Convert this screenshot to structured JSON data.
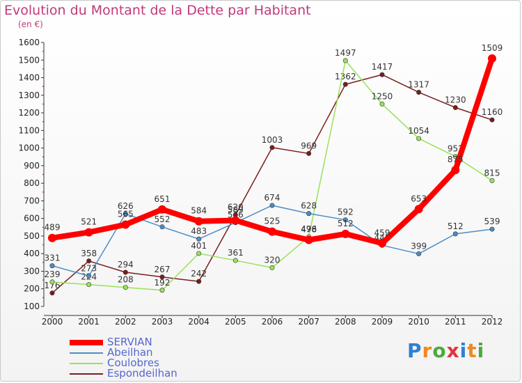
{
  "title": "Evolution du Montant de la Dette par Habitant",
  "subtitle": "(en €)",
  "logo_letters": [
    {
      "ch": "P",
      "color": "#2f7fd4"
    },
    {
      "ch": "r",
      "color": "#f08a1c"
    },
    {
      "ch": "o",
      "color": "#4aaa3a"
    },
    {
      "ch": "x",
      "color": "#e0353f"
    },
    {
      "ch": "i",
      "color": "#2f7fd4"
    },
    {
      "ch": "t",
      "color": "#f08a1c"
    },
    {
      "ch": "i",
      "color": "#4aaa3a"
    }
  ],
  "chart_data": {
    "type": "line",
    "x": [
      "2000",
      "2001",
      "2002",
      "2003",
      "2004",
      "2005",
      "2006",
      "2007",
      "2008",
      "2009",
      "2010",
      "2011",
      "2012"
    ],
    "ylim": [
      100,
      1600
    ],
    "yticks": [
      100,
      200,
      300,
      400,
      500,
      600,
      700,
      800,
      900,
      1000,
      1100,
      1200,
      1300,
      1400,
      1500,
      1600
    ],
    "grid": false,
    "legend_position": "bottom-left",
    "series": [
      {
        "name": "Espondeilhan",
        "color": "#7a1d1d",
        "values": [
          176,
          358,
          294,
          267,
          242,
          620,
          1003,
          969,
          1362,
          1417,
          1317,
          1230,
          1160
        ]
      },
      {
        "name": "Coulobres",
        "color": "#99e15a",
        "values": [
          239,
          224,
          208,
          192,
          401,
          361,
          320,
          496,
          1497,
          1250,
          1054,
          952,
          815
        ]
      },
      {
        "name": "Abeilhan",
        "color": "#4a8ec8",
        "values": [
          331,
          273,
          626,
          552,
          483,
          576,
          674,
          628,
          592,
          447,
          399,
          512,
          539
        ]
      },
      {
        "name": "SERVIAN",
        "color": "#ff0000",
        "values": [
          489,
          521,
          565,
          651,
          584,
          589,
          525,
          478,
          512,
          459,
          653,
          875,
          1509
        ]
      }
    ],
    "legend": [
      {
        "name": "SERVIAN",
        "color": "#ff0000",
        "thick": true
      },
      {
        "name": "Abeilhan",
        "color": "#4a8ec8",
        "thick": false
      },
      {
        "name": "Coulobres",
        "color": "#99e15a",
        "thick": false
      },
      {
        "name": "Espondeilhan",
        "color": "#7a1d1d",
        "thick": false
      }
    ]
  }
}
